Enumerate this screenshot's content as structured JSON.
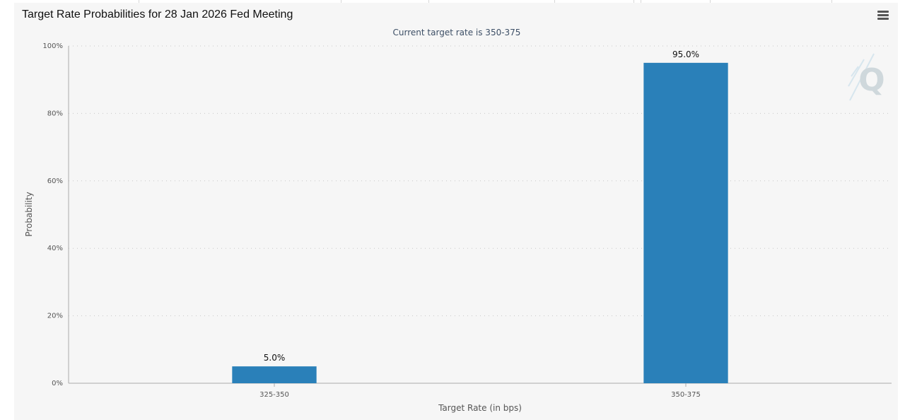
{
  "chart_data": {
    "type": "bar",
    "title": "Target Rate Probabilities for 28 Jan 2026 Fed Meeting",
    "subtitle": "Current target rate is 350-375",
    "xlabel": "Target Rate (in bps)",
    "ylabel": "Probability",
    "categories": [
      "325-350",
      "350-375"
    ],
    "values": [
      5.0,
      95.0
    ],
    "data_labels": [
      "5.0%",
      "95.0%"
    ],
    "ylim": [
      0,
      100
    ],
    "yticks": [
      0,
      20,
      40,
      60,
      80,
      100
    ],
    "ytick_labels": [
      "0%",
      "20%",
      "40%",
      "60%",
      "80%",
      "100%"
    ],
    "grid": true,
    "legend": "none",
    "bar_color": "#2a80b9"
  },
  "colors": {
    "bar": "#2a80b9",
    "background": "#f6f6f6",
    "gridline": "#c8c8c8",
    "axis": "#aaaaaa",
    "watermark": "#cfd8dc"
  },
  "icons": {
    "menu": "hamburger-menu-icon",
    "watermark": "q-logo-watermark"
  }
}
